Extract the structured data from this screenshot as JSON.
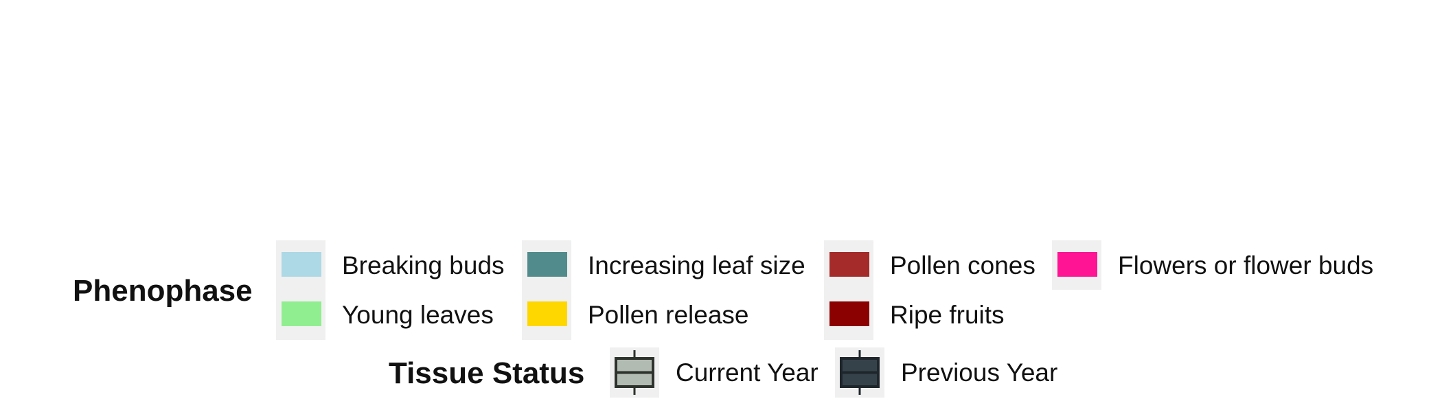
{
  "chart_data": {
    "type": "legend",
    "legends": [
      {
        "title": "Phenophase",
        "items": [
          {
            "label": "Breaking buds",
            "color": "#add8e6"
          },
          {
            "label": "Young leaves",
            "color": "#90ee90"
          },
          {
            "label": "Increasing leaf size",
            "color": "#528b8b"
          },
          {
            "label": "Pollen release",
            "color": "#ffd700"
          },
          {
            "label": "Pollen cones",
            "color": "#a52a2a"
          },
          {
            "label": "Ripe fruits",
            "color": "#8b0000"
          },
          {
            "label": "Flowers or flower buds",
            "color": "#ff1493"
          }
        ]
      },
      {
        "title": "Tissue Status",
        "items": [
          {
            "label": "Current Year",
            "fill": "#b2bbb2",
            "stroke": "#2d322d"
          },
          {
            "label": "Previous Year",
            "fill": "#36424a",
            "stroke": "#1e262b"
          }
        ]
      }
    ]
  }
}
